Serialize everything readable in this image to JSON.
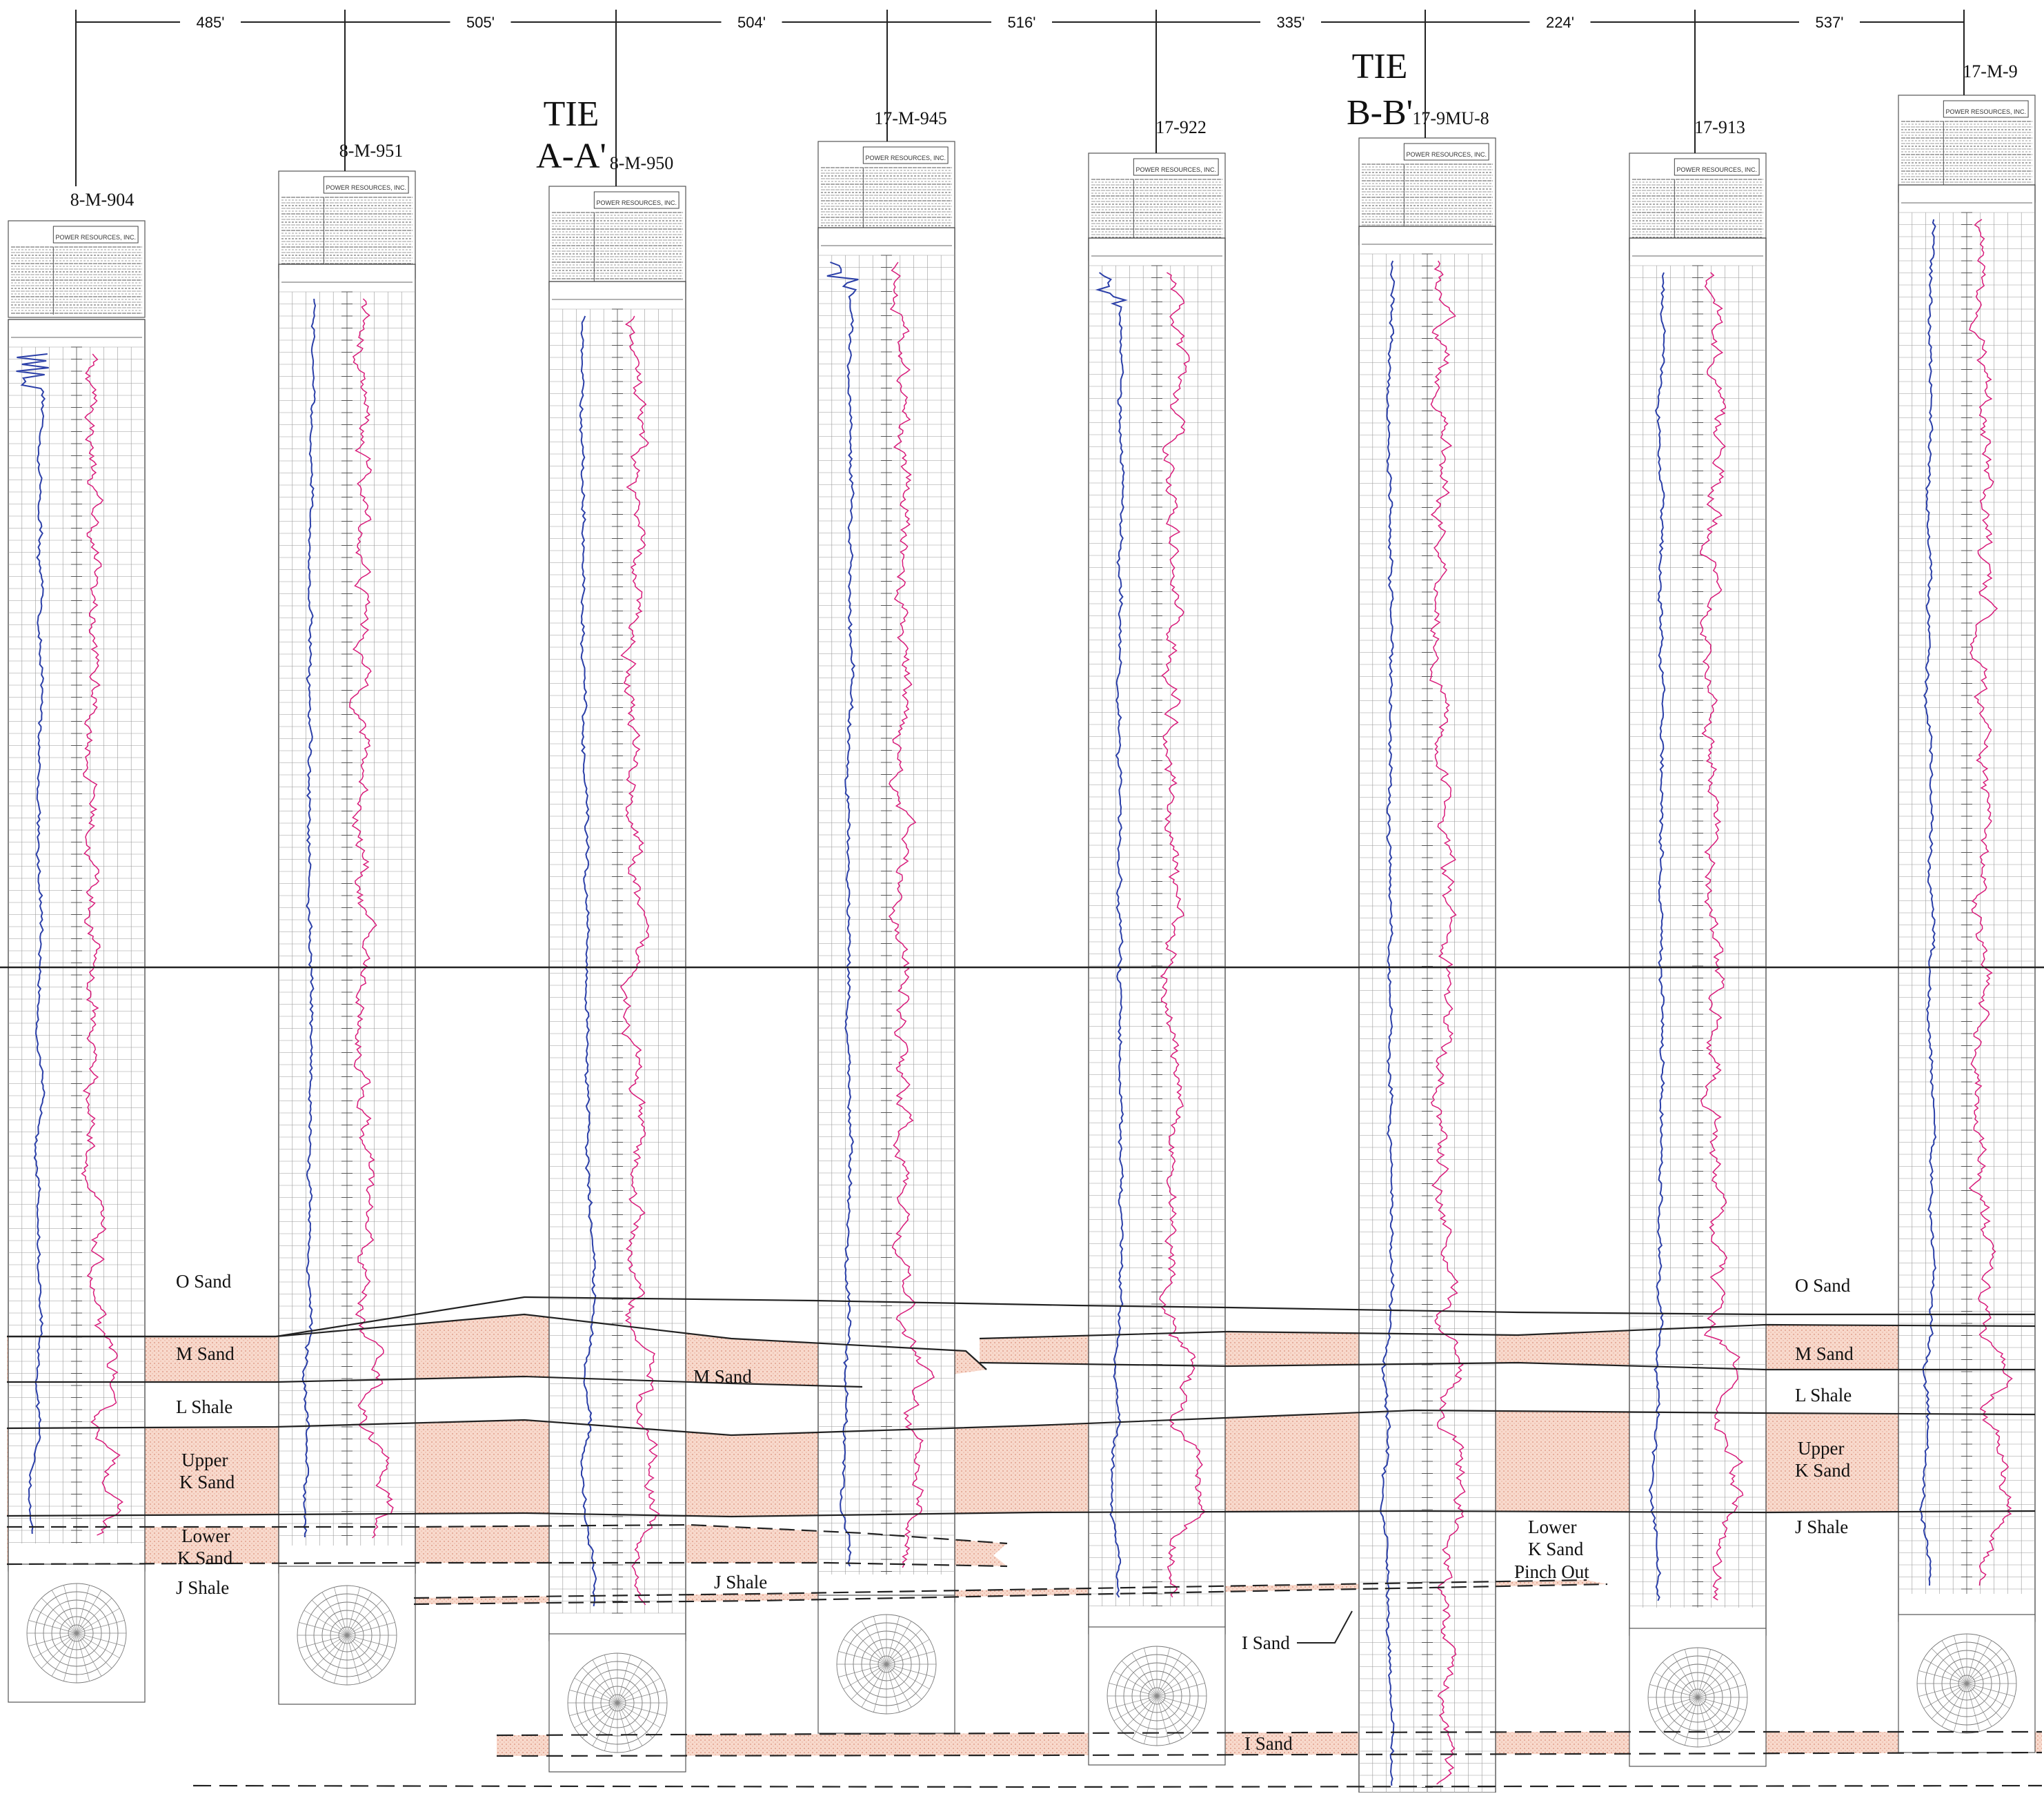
{
  "spacings": [
    "485'",
    "505'",
    "504'",
    "516'",
    "335'",
    "224'",
    "537'"
  ],
  "wells": [
    {
      "name": "8-M-904",
      "company": "POWER RESOURCES, INC."
    },
    {
      "name": "8-M-951",
      "company": "POWER RESOURCES, INC."
    },
    {
      "name": "8-M-950",
      "company": "POWER RESOURCES, INC."
    },
    {
      "name": "17-M-945",
      "company": "POWER RESOURCES, INC."
    },
    {
      "name": "17-922",
      "company": "POWER RESOURCES, INC."
    },
    {
      "name": "17-9MU-8",
      "company": "POWER RESOURCES, INC."
    },
    {
      "name": "17-913",
      "company": "POWER RESOURCES, INC."
    },
    {
      "name": "17-M-9",
      "company": "POWER RESOURCES, INC."
    }
  ],
  "ties": [
    {
      "line1": "TIE",
      "line2": "A-A'"
    },
    {
      "line1": "TIE",
      "line2": "B-B'"
    }
  ],
  "units": {
    "left": {
      "o_sand": "O Sand",
      "m_sand": "M Sand",
      "l_shale": "L Shale",
      "upper_k_1": "Upper",
      "upper_k_2": "K Sand",
      "lower_k_1": "Lower",
      "lower_k_2": "K Sand",
      "j_shale": "J Shale"
    },
    "middle": {
      "m_sand": "M Sand",
      "j_shale": "J Shale",
      "i_sand_callout": "I Sand",
      "i_sand_bottom": "I Sand",
      "pinch_1": "Lower",
      "pinch_2": "K Sand",
      "pinch_3": "Pinch Out"
    },
    "right": {
      "o_sand": "O Sand",
      "m_sand": "M Sand",
      "l_shale": "L Shale",
      "upper_k_1": "Upper",
      "upper_k_2": "K Sand",
      "j_shale": "J Shale"
    }
  },
  "colors": {
    "sand_fill": "#f8d9cc",
    "gamma_curve": "#2b3fa8",
    "resistivity_curve": "#d81b7a",
    "grid": "#9a9a9a"
  }
}
